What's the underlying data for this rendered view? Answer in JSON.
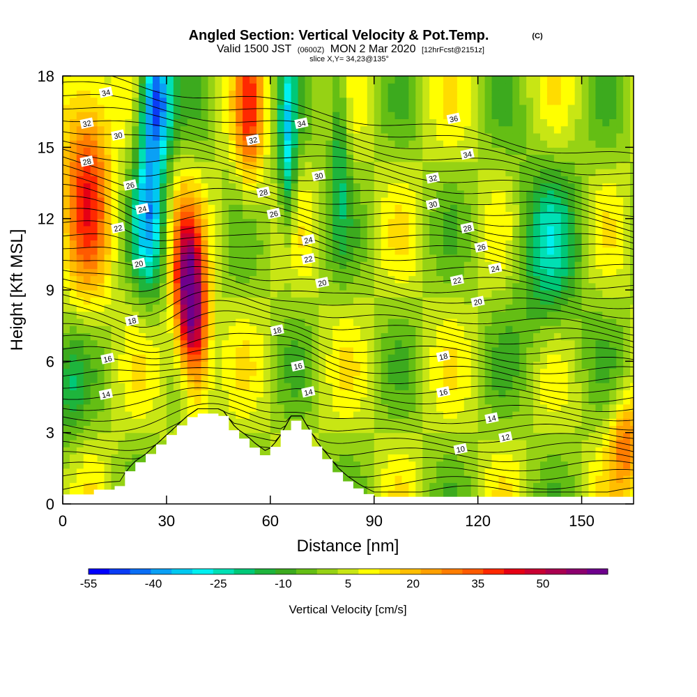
{
  "chart_data": {
    "type": "heatmap",
    "title": "Angled Section: Vertical Velocity & Pot.Temp.",
    "title_units": "(C)",
    "subtitle_valid": "Valid 1500 JST",
    "subtitle_utc": "(0600Z)",
    "subtitle_date": "MON 2 Mar 2020",
    "subtitle_fcst": "[12hrFcst@2151z]",
    "slice_label": "slice X,Y= 34,23@135°",
    "xlabel": "Distance [nm]",
    "ylabel": "Height [Kft MSL]",
    "xlim": [
      0,
      165
    ],
    "ylim": [
      0,
      18
    ],
    "x_ticks": [
      0,
      30,
      60,
      90,
      120,
      150
    ],
    "y_ticks": [
      0,
      3,
      6,
      9,
      12,
      15,
      18
    ],
    "colorbar": {
      "label": "Vertical Velocity [cm/s]",
      "tick_labels": [
        "-55",
        "-40",
        "-25",
        "-10",
        "5",
        "20",
        "35",
        "50"
      ],
      "min": -55,
      "max": 65,
      "step": 5,
      "colors": [
        "#0000ff",
        "#0a3cf5",
        "#0a6ef5",
        "#0aa0f5",
        "#00c8f0",
        "#00f0f0",
        "#00e0b4",
        "#00c878",
        "#1eb43c",
        "#3caa1e",
        "#64be14",
        "#96d214",
        "#c8e614",
        "#ffff00",
        "#ffdc00",
        "#ffbe00",
        "#ffa000",
        "#ff7d00",
        "#ff5a00",
        "#ff2800",
        "#e60014",
        "#c80032",
        "#aa0050",
        "#8c006e",
        "#6e008c"
      ]
    },
    "terrain_kft": [
      [
        0,
        0.4
      ],
      [
        8,
        0.4
      ],
      [
        10,
        0.6
      ],
      [
        16,
        0.6
      ],
      [
        17,
        0.9
      ],
      [
        19,
        1.3
      ],
      [
        21,
        1.6
      ],
      [
        24,
        1.9
      ],
      [
        27,
        2.3
      ],
      [
        30,
        2.7
      ],
      [
        33,
        3.1
      ],
      [
        36,
        3.5
      ],
      [
        39,
        3.8
      ],
      [
        46,
        3.8
      ],
      [
        48,
        3.4
      ],
      [
        50,
        3.0
      ],
      [
        53,
        2.7
      ],
      [
        56,
        2.3
      ],
      [
        59,
        2.0
      ],
      [
        61,
        2.3
      ],
      [
        63,
        2.7
      ],
      [
        66,
        3.5
      ],
      [
        69,
        3.5
      ],
      [
        71,
        3.0
      ],
      [
        74,
        2.3
      ],
      [
        77,
        1.8
      ],
      [
        79,
        1.4
      ],
      [
        82,
        1.0
      ],
      [
        86,
        0.6
      ],
      [
        90,
        0.3
      ],
      [
        165,
        0.3
      ]
    ],
    "theta_contours": [
      {
        "label": "10",
        "x": 115,
        "y": 2.3
      },
      {
        "label": "12",
        "x": 128,
        "y": 2.8
      },
      {
        "label": "14",
        "x": 12.5,
        "y": 4.6
      },
      {
        "label": "14",
        "x": 71,
        "y": 4.7
      },
      {
        "label": "14",
        "x": 124,
        "y": 3.6
      },
      {
        "label": "16",
        "x": 13,
        "y": 6.1
      },
      {
        "label": "16",
        "x": 68,
        "y": 5.8
      },
      {
        "label": "16",
        "x": 110,
        "y": 4.7
      },
      {
        "label": "18",
        "x": 20,
        "y": 7.7
      },
      {
        "label": "18",
        "x": 62,
        "y": 7.3
      },
      {
        "label": "18",
        "x": 110,
        "y": 6.2
      },
      {
        "label": "20",
        "x": 22,
        "y": 10.1
      },
      {
        "label": "20",
        "x": 75,
        "y": 9.3
      },
      {
        "label": "20",
        "x": 120,
        "y": 8.5
      },
      {
        "label": "22",
        "x": 16,
        "y": 11.6
      },
      {
        "label": "22",
        "x": 71,
        "y": 10.3
      },
      {
        "label": "22",
        "x": 114,
        "y": 9.4
      },
      {
        "label": "24",
        "x": 23,
        "y": 12.4
      },
      {
        "label": "24",
        "x": 71,
        "y": 11.1
      },
      {
        "label": "24",
        "x": 125,
        "y": 9.9
      },
      {
        "label": "26",
        "x": 19.5,
        "y": 13.4
      },
      {
        "label": "26",
        "x": 61,
        "y": 12.2
      },
      {
        "label": "26",
        "x": 121,
        "y": 10.8
      },
      {
        "label": "28",
        "x": 7,
        "y": 14.4
      },
      {
        "label": "28",
        "x": 58,
        "y": 13.1
      },
      {
        "label": "28",
        "x": 117,
        "y": 11.6
      },
      {
        "label": "30",
        "x": 16,
        "y": 15.5
      },
      {
        "label": "30",
        "x": 74,
        "y": 13.8
      },
      {
        "label": "30",
        "x": 107,
        "y": 12.6
      },
      {
        "label": "32",
        "x": 7,
        "y": 16.0
      },
      {
        "label": "32",
        "x": 55,
        "y": 15.3
      },
      {
        "label": "32",
        "x": 107,
        "y": 13.7
      },
      {
        "label": "34",
        "x": 12.5,
        "y": 17.3
      },
      {
        "label": "34",
        "x": 69,
        "y": 16.0
      },
      {
        "label": "34",
        "x": 117,
        "y": 14.7
      },
      {
        "label": "36",
        "x": 113,
        "y": 16.2
      }
    ]
  }
}
